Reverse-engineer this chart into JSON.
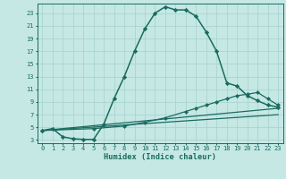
{
  "xlabel": "Humidex (Indice chaleur)",
  "background_color": "#c5e8e5",
  "grid_color": "#aad4d0",
  "line_color": "#1a6b60",
  "xlim": [
    -0.5,
    23.5
  ],
  "ylim": [
    2.5,
    24.5
  ],
  "yticks": [
    3,
    5,
    7,
    9,
    11,
    13,
    15,
    17,
    19,
    21,
    23
  ],
  "xticks": [
    0,
    1,
    2,
    3,
    4,
    5,
    6,
    7,
    8,
    9,
    10,
    11,
    12,
    13,
    14,
    15,
    16,
    17,
    18,
    19,
    20,
    21,
    22,
    23
  ],
  "series": [
    {
      "x": [
        0,
        1,
        2,
        3,
        4,
        5,
        6,
        7,
        8,
        9,
        10,
        11,
        12,
        13,
        14,
        15,
        16,
        17,
        18,
        19,
        20,
        21,
        22,
        23
      ],
      "y": [
        4.5,
        4.8,
        3.5,
        3.2,
        3.1,
        3.1,
        5.5,
        9.5,
        13.0,
        17.0,
        20.5,
        23.0,
        24.0,
        23.5,
        23.5,
        22.5,
        20.0,
        17.0,
        12.0,
        11.5,
        10.0,
        9.2,
        8.5,
        8.2
      ],
      "marker": "D",
      "markersize": 2.2,
      "linewidth": 1.1
    },
    {
      "x": [
        0,
        23
      ],
      "y": [
        4.5,
        8.0
      ],
      "marker": null,
      "markersize": 0,
      "linewidth": 0.9
    },
    {
      "x": [
        0,
        23
      ],
      "y": [
        4.5,
        7.0
      ],
      "marker": null,
      "markersize": 0,
      "linewidth": 0.9
    },
    {
      "x": [
        0,
        5,
        8,
        10,
        12,
        14,
        15,
        16,
        17,
        18,
        19,
        20,
        21,
        22,
        23
      ],
      "y": [
        4.5,
        4.8,
        5.2,
        5.8,
        6.5,
        7.5,
        8.0,
        8.5,
        9.0,
        9.5,
        10.0,
        10.2,
        10.5,
        9.5,
        8.5
      ],
      "marker": "D",
      "markersize": 2.0,
      "linewidth": 0.9
    }
  ]
}
